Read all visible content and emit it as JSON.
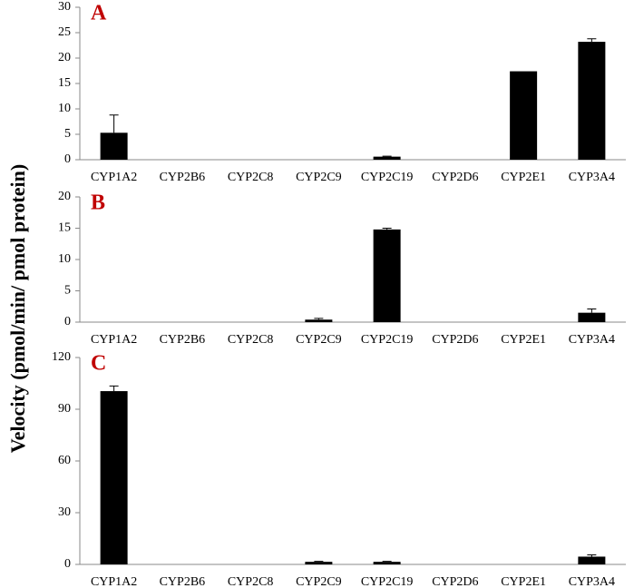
{
  "ylabel": "Velocity (pmol/min/ pmol protein)",
  "chart_data": [
    {
      "type": "bar",
      "title": "A",
      "color": "#000000",
      "categories": [
        "CYP1A2",
        "CYP2B6",
        "CYP2C8",
        "CYP2C9",
        "CYP2C19",
        "CYP2D6",
        "CYP2E1",
        "CYP3A4"
      ],
      "values": [
        5.3,
        0,
        0,
        0,
        0.6,
        0,
        17.4,
        23.2
      ],
      "errors": [
        3.5,
        0,
        0,
        0,
        0.1,
        0,
        0,
        0.6
      ],
      "ylim": [
        0,
        30
      ],
      "yticks": [
        0,
        5,
        10,
        15,
        20,
        25,
        30
      ]
    },
    {
      "type": "bar",
      "title": "B",
      "color": "#000000",
      "categories": [
        "CYP1A2",
        "CYP2B6",
        "CYP2C8",
        "CYP2C9",
        "CYP2C19",
        "CYP2D6",
        "CYP2E1",
        "CYP3A4"
      ],
      "values": [
        0,
        0,
        0,
        0.4,
        14.8,
        0,
        0,
        1.5
      ],
      "errors": [
        0,
        0,
        0,
        0.2,
        0.2,
        0,
        0,
        0.6
      ],
      "ylim": [
        0,
        20
      ],
      "yticks": [
        0,
        5,
        10,
        15,
        20
      ]
    },
    {
      "type": "bar",
      "title": "C",
      "color": "#000000",
      "categories": [
        "CYP1A2",
        "CYP2B6",
        "CYP2C8",
        "CYP2C9",
        "CYP2C19",
        "CYP2D6",
        "CYP2E1",
        "CYP3A4"
      ],
      "values": [
        100.5,
        0,
        0,
        1.5,
        1.5,
        0,
        0,
        4.5
      ],
      "errors": [
        3,
        0,
        0,
        0.3,
        0.3,
        0,
        0,
        1
      ],
      "ylim": [
        0,
        120
      ],
      "yticks": [
        0,
        30,
        60,
        90,
        120
      ]
    }
  ]
}
